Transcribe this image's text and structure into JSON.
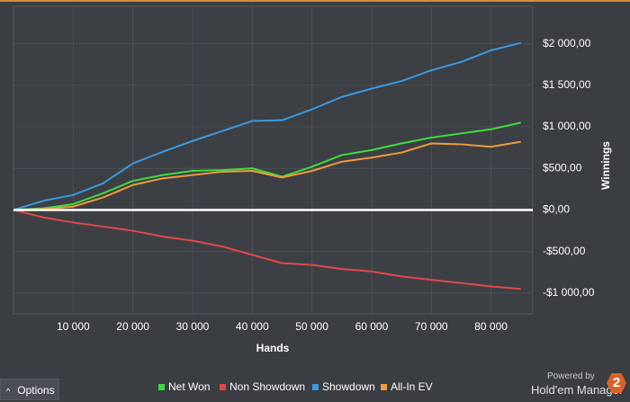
{
  "chart_data": {
    "type": "line",
    "x_label": "Hands",
    "y_label": "Winnings",
    "x": [
      0,
      5000,
      10000,
      15000,
      20000,
      25000,
      30000,
      35000,
      40000,
      45000,
      50000,
      55000,
      60000,
      65000,
      70000,
      75000,
      80000,
      85000
    ],
    "series": [
      {
        "name": "Net Won",
        "color": "#3ddc3d",
        "values": [
          0,
          20,
          70,
          200,
          350,
          420,
          470,
          480,
          500,
          400,
          520,
          660,
          720,
          800,
          870,
          920,
          970,
          1050
        ]
      },
      {
        "name": "Non Showdown",
        "color": "#e04848",
        "values": [
          0,
          -90,
          -150,
          -200,
          -250,
          -320,
          -370,
          -440,
          -540,
          -640,
          -660,
          -710,
          -740,
          -800,
          -840,
          -880,
          -920,
          -950
        ]
      },
      {
        "name": "Showdown",
        "color": "#3a9ae0",
        "values": [
          0,
          110,
          180,
          320,
          560,
          700,
          830,
          950,
          1070,
          1080,
          1210,
          1360,
          1460,
          1550,
          1680,
          1780,
          1920,
          2010
        ]
      },
      {
        "name": "All-In EV",
        "color": "#f09a3a",
        "values": [
          0,
          10,
          40,
          150,
          300,
          380,
          420,
          460,
          470,
          390,
          470,
          580,
          630,
          690,
          800,
          790,
          760,
          820
        ]
      }
    ],
    "xlim": [
      0,
      87000
    ],
    "xticks": [
      {
        "value": 10000,
        "label": "10 000"
      },
      {
        "value": 20000,
        "label": "20 000"
      },
      {
        "value": 30000,
        "label": "30 000"
      },
      {
        "value": 40000,
        "label": "40 000"
      },
      {
        "value": 50000,
        "label": "50 000"
      },
      {
        "value": 60000,
        "label": "60 000"
      },
      {
        "value": 70000,
        "label": "70 000"
      },
      {
        "value": 80000,
        "label": "80 000"
      }
    ],
    "ylim": [
      -1250,
      2450
    ],
    "yticks": [
      {
        "value": -1000,
        "label": "-$1 000,00"
      },
      {
        "value": -500,
        "label": "-$500,00"
      },
      {
        "value": 0,
        "label": "$0,00"
      },
      {
        "value": 500,
        "label": "$500,00"
      },
      {
        "value": 1000,
        "label": "$1 000,00"
      },
      {
        "value": 1500,
        "label": "$1 500,00"
      },
      {
        "value": 2000,
        "label": "$2 000,00"
      }
    ],
    "grid": true,
    "legend": "bottom"
  },
  "ui": {
    "options_button": "Options",
    "powered_by": "Powered by",
    "brand": "Hold'em Manager",
    "logo": "2"
  }
}
